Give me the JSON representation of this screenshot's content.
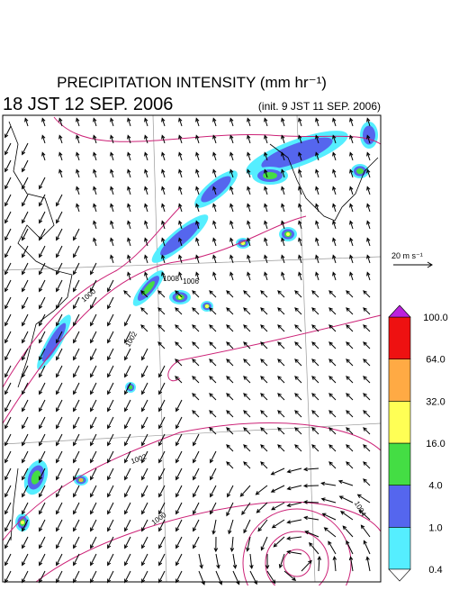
{
  "header": {
    "title": "PRECIPITATION INTENSITY (mm hr⁻¹)",
    "valid_time": "18 JST 12 SEP. 2006",
    "init_time": "(init. 9 JST 11 SEP. 2006)"
  },
  "wind_scale": {
    "label": "20 m s⁻¹"
  },
  "colorbar": {
    "levels": [
      "0.4",
      "1.0",
      "4.0",
      "16.0",
      "32.0",
      "64.0",
      "100.0"
    ],
    "colors": [
      "#55eeff",
      "#5566ee",
      "#44dd44",
      "#ffff55",
      "#ffaa44",
      "#ee1111"
    ],
    "under_color": "#ffffff",
    "over_color": "#bb22dd"
  },
  "map": {
    "isobar_labels": [
      "1008",
      "1006",
      "1000",
      "1002",
      "1002",
      "1000",
      "1004"
    ]
  }
}
